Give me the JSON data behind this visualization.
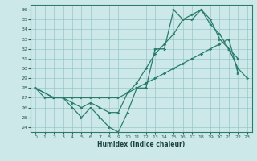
{
  "xlabel": "Humidex (Indice chaleur)",
  "xlim": [
    -0.5,
    23.5
  ],
  "ylim": [
    23.5,
    36.5
  ],
  "yticks": [
    24,
    25,
    26,
    27,
    28,
    29,
    30,
    31,
    32,
    33,
    34,
    35,
    36
  ],
  "xticks": [
    0,
    1,
    2,
    3,
    4,
    5,
    6,
    7,
    8,
    9,
    10,
    11,
    12,
    13,
    14,
    15,
    16,
    17,
    18,
    19,
    20,
    21,
    22,
    23
  ],
  "line_color": "#2a7d6b",
  "bg_color": "#cce8e8",
  "series": [
    {
      "x": [
        0,
        1,
        2,
        3,
        4,
        5,
        6,
        7,
        8,
        9,
        10,
        11,
        12,
        13,
        14,
        15,
        16,
        17,
        18,
        19,
        20,
        21,
        22,
        23
      ],
      "y": [
        28,
        27,
        27,
        27,
        26,
        25,
        26,
        25,
        24,
        23.5,
        25.5,
        28,
        28,
        32,
        32,
        36,
        35,
        35,
        36,
        35,
        33,
        32,
        30,
        29
      ]
    },
    {
      "x": [
        0,
        2,
        3,
        4,
        5,
        6,
        7,
        8,
        9,
        10,
        11,
        12,
        13,
        14,
        15,
        16,
        17,
        18,
        19,
        20,
        21,
        22
      ],
      "y": [
        28,
        27,
        27,
        26.5,
        26,
        26.5,
        26,
        25.5,
        25.5,
        27.5,
        28.5,
        30,
        31.5,
        32.5,
        33.5,
        35,
        35.5,
        36,
        34.5,
        33.5,
        32,
        31
      ]
    },
    {
      "x": [
        0,
        2,
        3,
        4,
        5,
        6,
        7,
        8,
        9,
        10,
        11,
        12,
        13,
        14,
        15,
        16,
        17,
        18,
        19,
        20,
        21,
        22
      ],
      "y": [
        28,
        27,
        27,
        27,
        27,
        27,
        27,
        27,
        27,
        27.5,
        28,
        28.5,
        29,
        29.5,
        30,
        30.5,
        31,
        31.5,
        32,
        32.5,
        33,
        29.5
      ]
    }
  ]
}
